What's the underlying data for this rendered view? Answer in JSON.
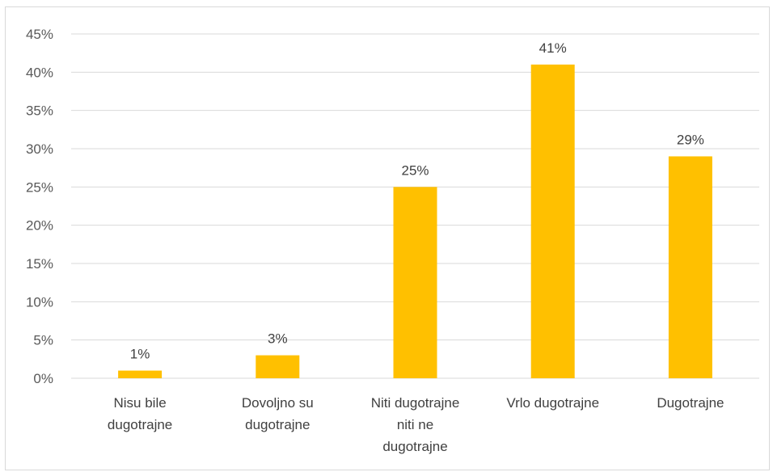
{
  "chart_data": {
    "type": "bar",
    "categories": [
      [
        "Nisu bile",
        "dugotrajne"
      ],
      [
        "Dovoljno su",
        "dugotrajne"
      ],
      [
        "Niti dugotrajne",
        "niti ne",
        "dugotrajne"
      ],
      [
        "Vrlo dugotrajne"
      ],
      [
        "Dugotrajne"
      ]
    ],
    "values": [
      1,
      3,
      25,
      41,
      29
    ],
    "data_labels": [
      "1%",
      "3%",
      "25%",
      "41%",
      "29%"
    ],
    "yticks": [
      0,
      5,
      10,
      15,
      20,
      25,
      30,
      35,
      40,
      45
    ],
    "ytick_labels": [
      "0%",
      "5%",
      "10%",
      "15%",
      "20%",
      "25%",
      "30%",
      "35%",
      "40%",
      "45%"
    ],
    "ylim": [
      0,
      45
    ],
    "title": "",
    "xlabel": "",
    "ylabel": "",
    "grid": true,
    "bar_color": "#FFC000"
  }
}
